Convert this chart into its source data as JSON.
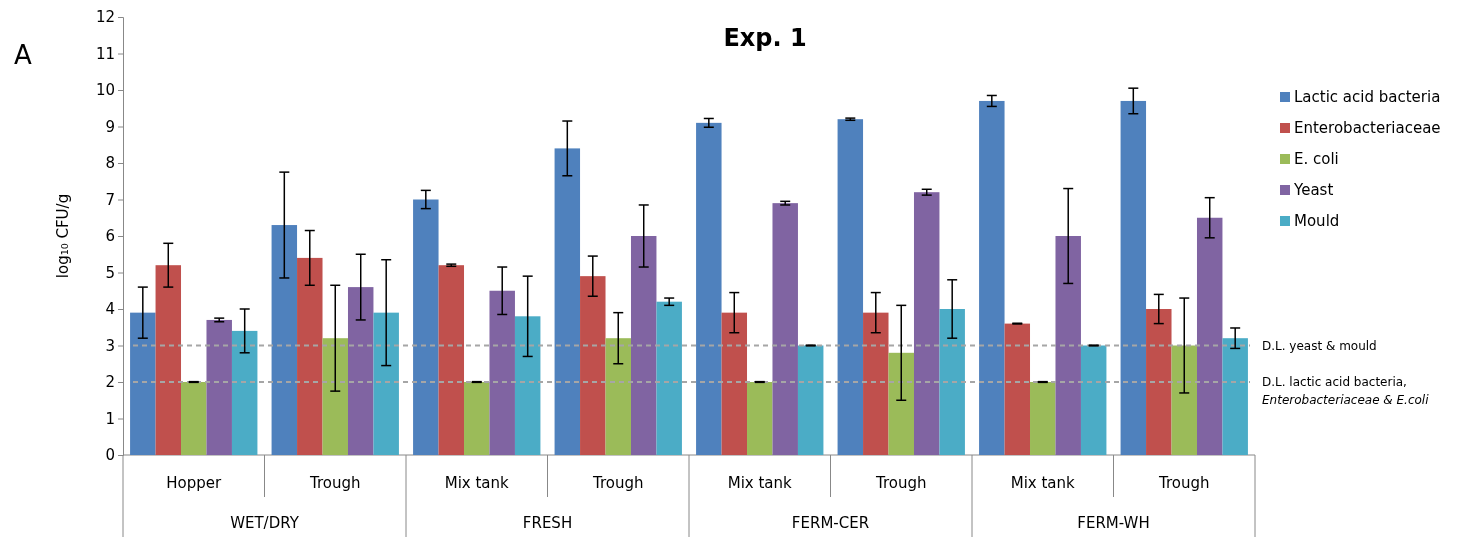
{
  "chart_data": {
    "type": "bar",
    "title": "Exp. 1",
    "ylabel": "log₁₀ CFU/g",
    "categories": [
      "Hopper",
      "Trough",
      "Mix tank",
      "Trough",
      "Mix tank",
      "Trough",
      "Mix tank",
      "Trough"
    ],
    "annotations": [
      "A",
      "WET/DRY",
      "FRESH",
      "FERM-CER",
      "FERM-WH"
    ],
    "series": [
      {
        "name": "Lactic acid bacteria",
        "color": "#4f81bd",
        "values": [
          3.9,
          6.3,
          7.0,
          8.4,
          9.1,
          9.2,
          9.7,
          9.7
        ],
        "errors": [
          0.7,
          1.45,
          0.25,
          0.75,
          0.12,
          0.03,
          0.15,
          0.35
        ]
      },
      {
        "name": "Enterobacteriaceae",
        "color": "#c0504d",
        "values": [
          5.2,
          5.4,
          5.2,
          4.9,
          3.9,
          3.9,
          3.6,
          4.0
        ],
        "errors": [
          0.6,
          0.75,
          0.03,
          0.55,
          0.55,
          0.55,
          0.01,
          0.4
        ]
      },
      {
        "name": "E. coli",
        "color": "#9bbb59",
        "values": [
          2.0,
          3.2,
          2.0,
          3.2,
          2.0,
          2.8,
          2.0,
          3.0
        ],
        "errors": [
          0.01,
          1.45,
          0.01,
          0.7,
          0.01,
          1.3,
          0.01,
          1.3
        ]
      },
      {
        "name": "Yeast",
        "color": "#8064a2",
        "values": [
          3.7,
          4.6,
          4.5,
          6.0,
          6.9,
          7.2,
          6.0,
          6.5
        ],
        "errors": [
          0.05,
          0.9,
          0.65,
          0.85,
          0.05,
          0.08,
          1.3,
          0.55
        ]
      },
      {
        "name": "Mould",
        "color": "#4bacc6",
        "values": [
          3.4,
          3.9,
          3.8,
          4.2,
          3.0,
          4.0,
          3.0,
          3.2
        ],
        "errors": [
          0.6,
          1.45,
          1.1,
          0.1,
          0.01,
          0.8,
          0.01,
          0.28
        ]
      }
    ],
    "ylim": [
      0,
      12
    ],
    "yticks": [
      0,
      1,
      2,
      3,
      4,
      5,
      6,
      7,
      8,
      9,
      10,
      11,
      12
    ],
    "grid": false,
    "legend": "right",
    "ref_lines": [
      {
        "axis": "y",
        "value": 3,
        "label": "D.L. yeast & mould",
        "color": "#a6a6a6",
        "line_style": "dashed"
      },
      {
        "axis": "y",
        "value": 2,
        "label": "D.L. lactic acid bacteria, Enterobacteriaceae & E.coli",
        "color": "#a6a6a6",
        "line_style": "dashed"
      }
    ]
  }
}
